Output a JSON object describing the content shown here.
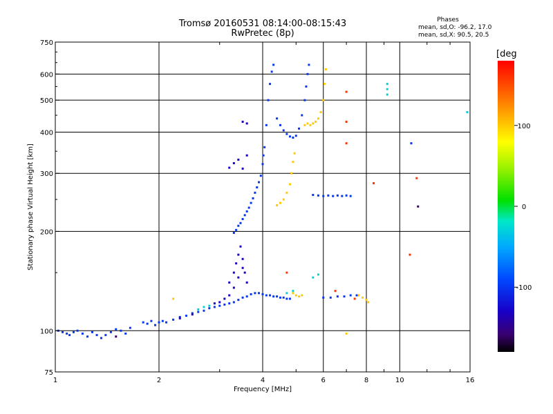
{
  "chart_data": {
    "type": "scatter",
    "title": "Tromsø 20160531 08:14:00-08:15:43",
    "subtitle": "RwPretec (8p)",
    "xlabel": "Frequency [MHz]",
    "ylabel": "Stationary phase Virtual Height [km]",
    "x_scale": "log",
    "y_scale": "log",
    "xlim": [
      1,
      16
    ],
    "ylim": [
      75,
      750
    ],
    "x_ticks": [
      1,
      2,
      4,
      6,
      8,
      10,
      16
    ],
    "x_tick_labels": [
      "1",
      "2",
      "4",
      "6",
      "8",
      "10",
      "16"
    ],
    "y_ticks": [
      75,
      100,
      200,
      300,
      400,
      500,
      600,
      750
    ],
    "y_tick_labels": [
      "75",
      "100",
      "200",
      "300",
      "400",
      "500",
      "600",
      "750"
    ],
    "grid": true,
    "stats": {
      "heading": "Phases",
      "line1": "mean, sd,O: -96.2, 17.0",
      "line2": "mean, sd,X:  90.5, 20.5"
    },
    "colorbar": {
      "label": "[deg",
      "range": [
        -180,
        180
      ],
      "ticks": [
        100,
        0,
        -100
      ],
      "tick_labels": [
        "100",
        "0",
        "-100"
      ]
    },
    "series": [
      {
        "color_phase": -100,
        "points": [
          [
            1.02,
            100
          ],
          [
            1.05,
            99
          ],
          [
            1.08,
            98
          ],
          [
            1.1,
            97
          ],
          [
            1.13,
            99
          ],
          [
            1.16,
            100
          ],
          [
            1.2,
            98
          ],
          [
            1.24,
            96
          ],
          [
            1.28,
            99
          ],
          [
            1.32,
            97
          ],
          [
            1.36,
            95
          ],
          [
            1.4,
            97
          ],
          [
            1.45,
            99
          ],
          [
            1.5,
            101
          ],
          [
            1.55,
            100
          ],
          [
            1.6,
            98
          ],
          [
            1.65,
            102
          ],
          [
            1.8,
            106
          ],
          [
            1.85,
            105
          ],
          [
            1.9,
            107
          ],
          [
            1.95,
            104
          ],
          [
            2.0,
            106
          ],
          [
            2.05,
            107
          ],
          [
            2.1,
            106
          ],
          [
            2.2,
            108
          ],
          [
            2.3,
            110
          ],
          [
            2.4,
            111
          ],
          [
            2.5,
            113
          ],
          [
            2.6,
            114
          ],
          [
            2.7,
            115
          ],
          [
            2.8,
            117
          ],
          [
            2.9,
            118
          ],
          [
            3.0,
            119
          ],
          [
            3.1,
            120
          ],
          [
            3.2,
            121
          ],
          [
            3.3,
            122
          ],
          [
            3.4,
            124
          ],
          [
            3.5,
            126
          ],
          [
            3.6,
            127
          ],
          [
            3.7,
            129
          ],
          [
            3.8,
            130
          ],
          [
            3.3,
            198
          ],
          [
            3.35,
            202
          ],
          [
            3.4,
            208
          ],
          [
            3.45,
            212
          ],
          [
            3.5,
            218
          ],
          [
            3.55,
            224
          ],
          [
            3.6,
            230
          ],
          [
            3.65,
            236
          ],
          [
            3.7,
            244
          ],
          [
            3.75,
            252
          ],
          [
            3.8,
            262
          ],
          [
            3.85,
            272
          ],
          [
            3.9,
            282
          ],
          [
            3.95,
            295
          ],
          [
            4.0,
            320
          ],
          [
            4.02,
            340
          ],
          [
            4.05,
            360
          ],
          [
            4.1,
            420
          ],
          [
            4.15,
            500
          ],
          [
            4.2,
            560
          ],
          [
            4.25,
            610
          ],
          [
            4.3,
            640
          ],
          [
            4.4,
            440
          ],
          [
            4.5,
            420
          ],
          [
            4.6,
            405
          ],
          [
            4.7,
            395
          ],
          [
            4.8,
            388
          ],
          [
            4.9,
            385
          ],
          [
            5.0,
            390
          ],
          [
            5.1,
            410
          ],
          [
            5.2,
            450
          ],
          [
            5.3,
            500
          ],
          [
            5.35,
            550
          ],
          [
            5.4,
            600
          ],
          [
            5.45,
            640
          ],
          [
            3.9,
            130
          ],
          [
            4.0,
            129
          ],
          [
            4.1,
            128
          ],
          [
            4.2,
            128
          ],
          [
            4.3,
            127
          ],
          [
            4.4,
            127
          ],
          [
            4.5,
            126
          ],
          [
            4.6,
            126
          ],
          [
            4.7,
            125
          ],
          [
            4.8,
            125
          ],
          [
            5.6,
            258
          ],
          [
            5.8,
            257
          ],
          [
            6.0,
            256
          ],
          [
            6.2,
            257
          ],
          [
            6.4,
            256
          ],
          [
            6.6,
            257
          ],
          [
            6.8,
            256
          ],
          [
            7.0,
            257
          ],
          [
            7.2,
            256
          ],
          [
            6.0,
            126
          ],
          [
            6.3,
            126
          ],
          [
            6.6,
            127
          ],
          [
            6.9,
            127
          ],
          [
            7.2,
            128
          ],
          [
            7.5,
            128
          ],
          [
            10.8,
            370
          ]
        ]
      },
      {
        "color_phase": -130,
        "points": [
          [
            3.1,
            125
          ],
          [
            3.2,
            140
          ],
          [
            3.3,
            150
          ],
          [
            3.35,
            160
          ],
          [
            3.4,
            170
          ],
          [
            3.45,
            180
          ],
          [
            3.5,
            165
          ],
          [
            3.55,
            150
          ],
          [
            3.6,
            140
          ],
          [
            3.5,
            155
          ],
          [
            3.4,
            145
          ],
          [
            3.3,
            135
          ],
          [
            3.2,
            128
          ],
          [
            3.0,
            122
          ],
          [
            2.9,
            121
          ],
          [
            2.5,
            112
          ],
          [
            2.3,
            109
          ],
          [
            3.2,
            312
          ],
          [
            3.3,
            322
          ],
          [
            3.4,
            330
          ],
          [
            3.5,
            310
          ],
          [
            3.6,
            340
          ],
          [
            3.5,
            430
          ],
          [
            3.6,
            425
          ]
        ]
      },
      {
        "color_phase": 100,
        "points": [
          [
            4.4,
            240
          ],
          [
            4.5,
            244
          ],
          [
            4.6,
            250
          ],
          [
            4.7,
            262
          ],
          [
            4.8,
            278
          ],
          [
            4.85,
            300
          ],
          [
            4.9,
            325
          ],
          [
            4.95,
            345
          ],
          [
            5.3,
            420
          ],
          [
            5.4,
            425
          ],
          [
            5.5,
            420
          ],
          [
            5.6,
            425
          ],
          [
            5.7,
            430
          ],
          [
            5.8,
            440
          ],
          [
            5.9,
            460
          ],
          [
            6.0,
            500
          ],
          [
            6.05,
            560
          ],
          [
            6.1,
            620
          ],
          [
            4.9,
            130
          ],
          [
            5.0,
            128
          ],
          [
            5.1,
            127
          ],
          [
            5.2,
            128
          ],
          [
            7.6,
            128
          ],
          [
            7.8,
            126
          ],
          [
            8.0,
            124
          ],
          [
            8.1,
            122
          ],
          [
            7.0,
            98
          ],
          [
            2.2,
            125
          ]
        ]
      },
      {
        "color_phase": -30,
        "points": [
          [
            2.6,
            116
          ],
          [
            2.7,
            118
          ],
          [
            2.8,
            119
          ],
          [
            4.7,
            130
          ],
          [
            4.9,
            132
          ],
          [
            5.6,
            145
          ],
          [
            5.8,
            148
          ],
          [
            9.2,
            520
          ],
          [
            9.2,
            540
          ],
          [
            9.2,
            560
          ],
          [
            15.7,
            460
          ]
        ]
      },
      {
        "color_phase": 160,
        "points": [
          [
            7.0,
            530
          ],
          [
            7.0,
            430
          ],
          [
            7.0,
            370
          ],
          [
            4.7,
            150
          ],
          [
            6.5,
            132
          ],
          [
            7.4,
            125
          ],
          [
            8.4,
            280
          ],
          [
            10.7,
            170
          ],
          [
            11.2,
            290
          ]
        ]
      },
      {
        "color_phase": -160,
        "points": [
          [
            11.3,
            238
          ],
          [
            1.5,
            96
          ]
        ]
      }
    ]
  }
}
